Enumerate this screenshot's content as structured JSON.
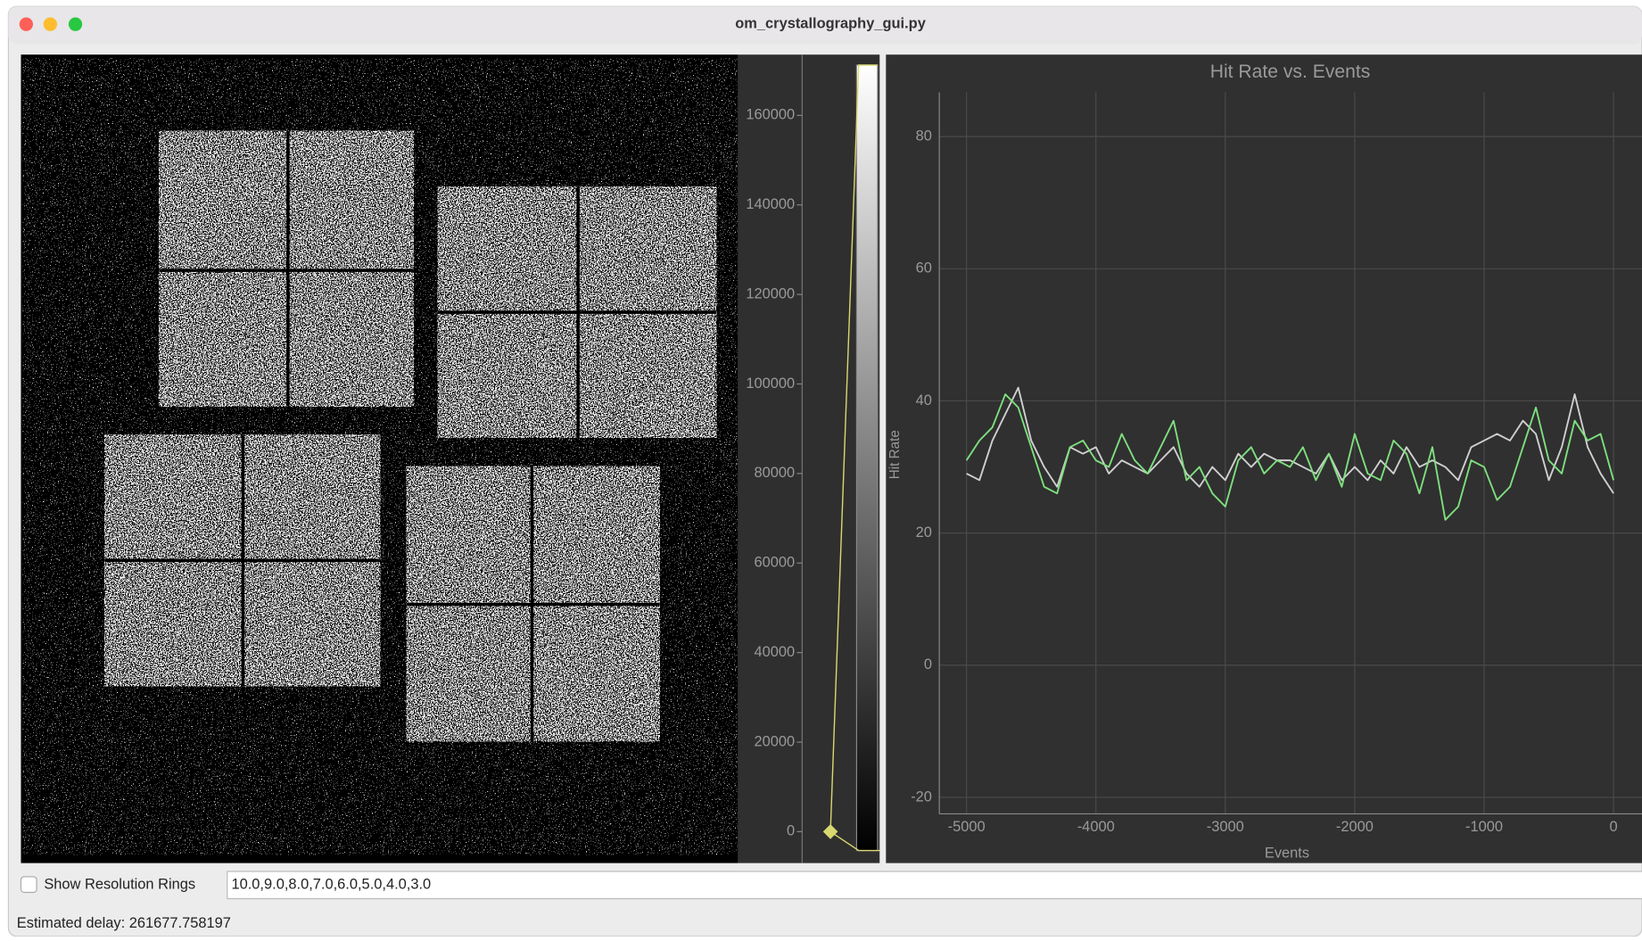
{
  "window": {
    "title": "om_crystallography_gui.py"
  },
  "histogram": {
    "ylim": [
      -7020,
      173570
    ],
    "yticks": [
      0,
      20000,
      40000,
      60000,
      80000,
      100000,
      120000,
      140000,
      160000
    ]
  },
  "chart_data": {
    "type": "line",
    "title": "Hit Rate vs. Events",
    "xlabel": "Events",
    "ylabel": "Hit Rate",
    "x": [
      -5000,
      -4900,
      -4800,
      -4700,
      -4600,
      -4500,
      -4400,
      -4300,
      -4200,
      -4100,
      -4000,
      -3900,
      -3800,
      -3700,
      -3600,
      -3500,
      -3400,
      -3300,
      -3200,
      -3100,
      -3000,
      -2900,
      -2800,
      -2700,
      -2600,
      -2500,
      -2400,
      -2300,
      -2200,
      -2100,
      -2000,
      -1900,
      -1800,
      -1700,
      -1600,
      -1500,
      -1400,
      -1300,
      -1200,
      -1100,
      -1000,
      -900,
      -800,
      -700,
      -600,
      -500,
      -400,
      -300,
      -200,
      -100,
      0
    ],
    "series": [
      {
        "color": "#d0d0d0",
        "values": [
          29,
          28,
          34,
          38,
          42,
          34,
          30,
          27,
          33,
          32,
          33,
          29,
          31,
          30,
          29,
          31,
          33,
          29,
          27,
          30,
          28,
          32,
          30,
          32,
          31,
          31,
          30,
          29,
          32,
          28,
          30,
          28,
          31,
          29,
          33,
          30,
          31,
          30,
          28,
          33,
          34,
          35,
          34,
          37,
          35,
          28,
          33,
          41,
          33,
          29,
          26
        ]
      },
      {
        "color": "#7ee07e",
        "values": [
          31,
          34,
          36,
          41,
          39,
          33,
          27,
          26,
          33,
          34,
          31,
          30,
          35,
          31,
          29,
          33,
          37,
          28,
          30,
          26,
          24,
          31,
          33,
          29,
          31,
          30,
          33,
          28,
          32,
          27,
          35,
          29,
          28,
          34,
          32,
          26,
          33,
          22,
          24,
          31,
          30,
          25,
          27,
          33,
          39,
          31,
          29,
          37,
          34,
          35,
          28
        ]
      }
    ],
    "xlim": [
      -5210,
      220
    ],
    "ylim": [
      -22.5,
      86.7
    ],
    "xticks": [
      -5000,
      -4000,
      -3000,
      -2000,
      -1000,
      0
    ],
    "yticks": [
      -20,
      0,
      20,
      40,
      60,
      80
    ],
    "grid": true
  },
  "controls": {
    "checkbox_label": "Show Resolution Rings",
    "checked": false,
    "resolution_rings": "10.0,9.0,8.0,7.0,6.0,5.0,4.0,3.0",
    "status": "Estimated delay: 261677.758197"
  }
}
